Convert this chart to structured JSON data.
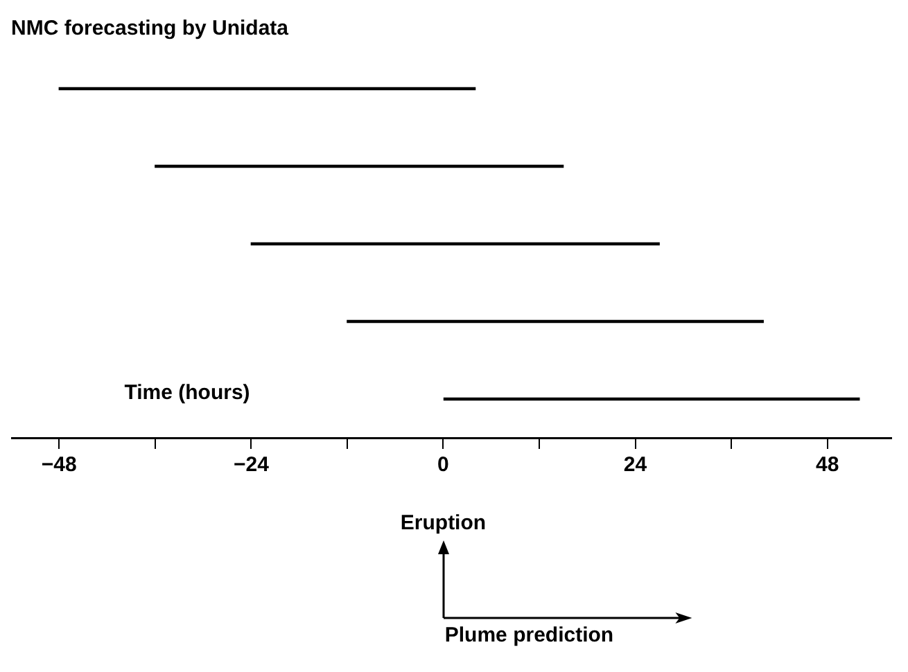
{
  "chart_data": {
    "type": "bar",
    "orientation": "horizontal",
    "title": "NMC forecasting by Unidata",
    "xlabel": "Time (hours)",
    "categories": [
      null,
      null,
      null,
      null,
      null
    ],
    "base": [
      -48,
      -36,
      -24,
      -12,
      0
    ],
    "values": [
      52,
      51,
      51,
      52,
      52
    ],
    "color": "#000000",
    "xlim": [
      -54,
      56
    ],
    "xticks": [
      {
        "value": -48,
        "label": "−48"
      },
      {
        "value": -36,
        "label": null
      },
      {
        "value": -24,
        "label": "−24"
      },
      {
        "value": -12,
        "label": null
      },
      0,
      {
        "value": 12,
        "label": null
      },
      24,
      {
        "value": 36,
        "label": null
      },
      48
    ],
    "annotations": [
      "Eruption",
      "Plume prediction"
    ],
    "grid": false,
    "legend": false,
    "tick_labels": "x"
  }
}
